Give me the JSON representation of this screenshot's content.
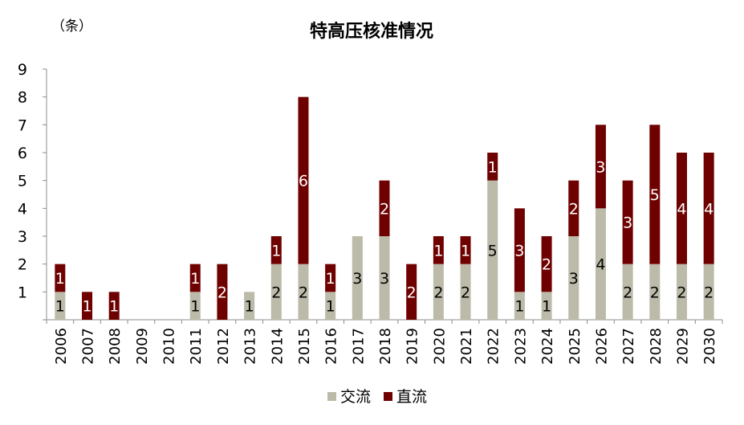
{
  "chart_data": {
    "type": "bar",
    "stacked": true,
    "title": "特高压核准情况",
    "unit_label": "（条）",
    "categories": [
      "2006",
      "2007",
      "2008",
      "2009",
      "2010",
      "2011",
      "2012",
      "2013",
      "2014",
      "2015",
      "2016",
      "2017",
      "2018",
      "2019",
      "2020",
      "2021",
      "2022",
      "2023",
      "2024",
      "2025",
      "2026",
      "2027",
      "2028",
      "2029",
      "2030"
    ],
    "series": [
      {
        "name": "交流",
        "color": "#bcbaa8",
        "label_color": "#000000",
        "values": [
          1,
          0,
          0,
          0,
          0,
          1,
          0,
          1,
          2,
          2,
          1,
          3,
          3,
          0,
          2,
          2,
          5,
          1,
          1,
          3,
          4,
          2,
          2,
          2,
          2
        ]
      },
      {
        "name": "直流",
        "color": "#6f0000",
        "label_color": "#ffffff",
        "values": [
          1,
          1,
          1,
          0,
          0,
          1,
          2,
          0,
          1,
          6,
          1,
          0,
          2,
          2,
          1,
          1,
          1,
          3,
          2,
          2,
          3,
          3,
          5,
          4,
          4
        ]
      }
    ],
    "ylim": [
      0,
      9
    ],
    "yticks": [
      0,
      1,
      2,
      3,
      4,
      5,
      6,
      7,
      8,
      9
    ],
    "ytick_labels_shown": [
      "1",
      "2",
      "3",
      "4",
      "5",
      "6",
      "7",
      "8",
      "9"
    ],
    "grid": false,
    "legend_position": "bottom-center"
  }
}
